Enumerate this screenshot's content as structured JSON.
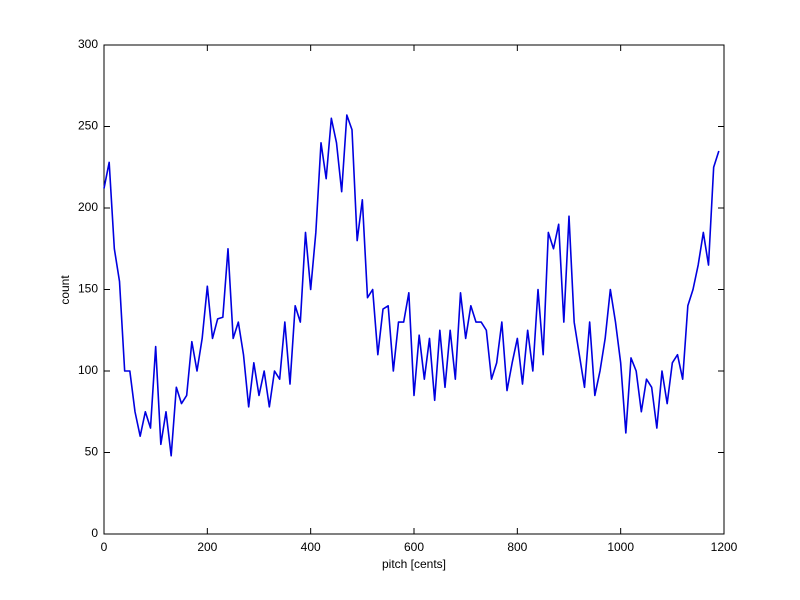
{
  "chart_data": {
    "type": "line",
    "xlabel": "pitch [cents]",
    "ylabel": "count",
    "x": [
      0,
      10,
      20,
      30,
      40,
      50,
      60,
      70,
      80,
      90,
      100,
      110,
      120,
      130,
      140,
      150,
      160,
      170,
      180,
      190,
      200,
      210,
      220,
      230,
      240,
      250,
      260,
      270,
      280,
      290,
      300,
      310,
      320,
      330,
      340,
      350,
      360,
      370,
      380,
      390,
      400,
      410,
      420,
      430,
      440,
      450,
      460,
      470,
      480,
      490,
      500,
      510,
      520,
      530,
      540,
      550,
      560,
      570,
      580,
      590,
      600,
      610,
      620,
      630,
      640,
      650,
      660,
      670,
      680,
      690,
      700,
      710,
      720,
      730,
      740,
      750,
      760,
      770,
      780,
      790,
      800,
      810,
      820,
      830,
      840,
      850,
      860,
      870,
      880,
      890,
      900,
      910,
      920,
      930,
      940,
      950,
      960,
      970,
      980,
      990,
      1000,
      1010,
      1020,
      1030,
      1040,
      1050,
      1060,
      1070,
      1080,
      1090,
      1100,
      1110,
      1120,
      1130,
      1140,
      1150,
      1160,
      1170,
      1180,
      1190
    ],
    "series": [
      {
        "name": "count",
        "color": "#0000e0",
        "values": [
          212,
          228,
          175,
          155,
          100,
          100,
          75,
          60,
          75,
          65,
          115,
          55,
          75,
          48,
          90,
          80,
          85,
          118,
          100,
          120,
          152,
          120,
          132,
          133,
          175,
          120,
          130,
          110,
          78,
          105,
          85,
          100,
          78,
          100,
          95,
          130,
          92,
          140,
          130,
          185,
          150,
          185,
          240,
          218,
          255,
          240,
          210,
          257,
          248,
          180,
          205,
          145,
          150,
          110,
          138,
          140,
          100,
          130,
          130,
          148,
          85,
          122,
          95,
          120,
          82,
          125,
          90,
          125,
          95,
          148,
          120,
          140,
          130,
          130,
          125,
          95,
          105,
          130,
          88,
          105,
          120,
          92,
          125,
          100,
          150,
          110,
          185,
          175,
          190,
          130,
          195,
          130,
          110,
          90,
          130,
          85,
          100,
          120,
          150,
          130,
          105,
          62,
          108,
          100,
          75,
          95,
          90,
          65,
          100,
          80,
          105,
          110,
          95,
          140,
          150,
          165,
          185,
          165,
          225,
          235
        ]
      }
    ],
    "xlim": [
      0,
      1200
    ],
    "ylim": [
      0,
      300
    ],
    "xticks": [
      0,
      200,
      400,
      600,
      800,
      1000,
      1200
    ],
    "yticks": [
      0,
      50,
      100,
      150,
      200,
      250,
      300
    ]
  }
}
